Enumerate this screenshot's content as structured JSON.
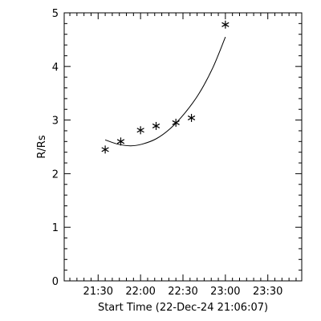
{
  "chart_data": {
    "type": "scatter",
    "title": "",
    "xlabel": "Start Time (22-Dec-24 21:06:07)",
    "ylabel": "R/Rs",
    "x_unit": "time",
    "xlim": [
      "21:06",
      "23:54"
    ],
    "ylim": [
      0,
      5
    ],
    "x_ticks": [
      "21:30",
      "22:00",
      "22:30",
      "23:00",
      "23:30"
    ],
    "y_ticks": [
      "0",
      "1",
      "2",
      "3",
      "4",
      "5"
    ],
    "minor_ticks": true,
    "grid": false,
    "series": [
      {
        "marker": "asterisk",
        "points": [
          {
            "x": "21:35",
            "y": 2.45
          },
          {
            "x": "21:46",
            "y": 2.6
          },
          {
            "x": "22:00",
            "y": 2.81
          },
          {
            "x": "22:11",
            "y": 2.89
          },
          {
            "x": "22:25",
            "y": 2.95
          },
          {
            "x": "22:36",
            "y": 3.04
          },
          {
            "x": "23:00",
            "y": 4.78
          }
        ]
      },
      {
        "style": "line",
        "curve": [
          {
            "x": "21:35",
            "y": 2.63
          },
          {
            "x": "21:44",
            "y": 2.55
          },
          {
            "x": "21:53",
            "y": 2.52
          },
          {
            "x": "22:01",
            "y": 2.55
          },
          {
            "x": "22:11",
            "y": 2.65
          },
          {
            "x": "22:21",
            "y": 2.84
          },
          {
            "x": "22:31",
            "y": 3.12
          },
          {
            "x": "22:41",
            "y": 3.48
          },
          {
            "x": "22:51",
            "y": 3.97
          },
          {
            "x": "23:00",
            "y": 4.55
          }
        ]
      }
    ]
  }
}
